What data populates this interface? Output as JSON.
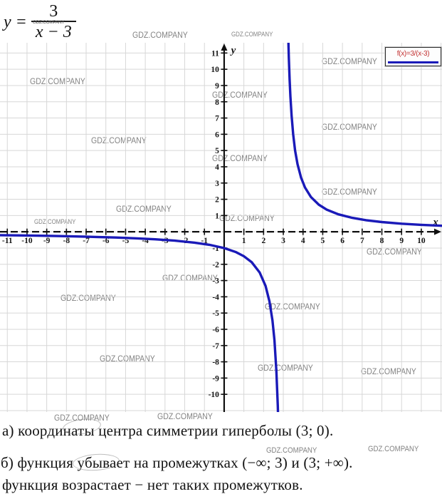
{
  "formula": {
    "lhs": "y =",
    "numerator": "3",
    "denominator": "x − 3"
  },
  "legend": {
    "label": "f(x)=3/(x-3)"
  },
  "watermark": {
    "text": "GDZ.COMPANY",
    "positions": [
      [
        186,
        42,
        12
      ],
      [
        325,
        43,
        9
      ],
      [
        452,
        79,
        12
      ],
      [
        42,
        107,
        12
      ],
      [
        298,
        126,
        12
      ],
      [
        452,
        171,
        12
      ],
      [
        128,
        190,
        12
      ],
      [
        298,
        215,
        12
      ],
      [
        452,
        262,
        12
      ],
      [
        163,
        286,
        12
      ],
      [
        308,
        299,
        12
      ],
      [
        48,
        306,
        9
      ],
      [
        515,
        346,
        12
      ],
      [
        228,
        383,
        12
      ],
      [
        85,
        411,
        12
      ],
      [
        372,
        423,
        12
      ],
      [
        140,
        496,
        12
      ],
      [
        362,
        509,
        12
      ],
      [
        507,
        514,
        12
      ],
      [
        76,
        579,
        12
      ],
      [
        221,
        577,
        12
      ],
      [
        374,
        626,
        11
      ],
      [
        517,
        624,
        11
      ]
    ]
  },
  "answers": {
    "line_a": "а) координаты центра симметрии гиперболы (3; 0).",
    "line_b": "б) функция убывает на промежутках (−∞; 3) и (3; +∞).",
    "line_c": "функция возрастает − нет таких промежутков."
  },
  "chart_data": {
    "type": "line",
    "title": "",
    "legend": [
      "f(x)=3/(x-3)"
    ],
    "xlabel": "x",
    "ylabel": "y",
    "xlim": [
      -11.37,
      11.05
    ],
    "ylim": [
      -11.09,
      11.63
    ],
    "grid": true,
    "legend_position": "top-right",
    "x_ticks": [
      -11,
      -10,
      -9,
      -8,
      -7,
      -6,
      -5,
      -4,
      -3,
      -2,
      -1,
      1,
      2,
      3,
      4,
      5,
      6,
      7,
      8,
      9,
      10
    ],
    "y_ticks": [
      -10,
      -9,
      -8,
      -7,
      -6,
      -5,
      -4,
      -3,
      -2,
      -1,
      1,
      2,
      3,
      4,
      5,
      6,
      7,
      8,
      9,
      10,
      11
    ],
    "asymptote_vertical": 3,
    "asymptote_horizontal": 0,
    "series": [
      {
        "name": "f(x)=3/(x-3)",
        "color": "#1a1ab8",
        "branches": [
          [
            [
              -11.37,
              -0.209
            ],
            [
              -10.5,
              -0.222
            ],
            [
              -9.5,
              -0.24
            ],
            [
              -8.5,
              -0.261
            ],
            [
              -7.5,
              -0.286
            ],
            [
              -6.5,
              -0.316
            ],
            [
              -5.5,
              -0.353
            ],
            [
              -4.5,
              -0.4
            ],
            [
              -3.5,
              -0.462
            ],
            [
              -2.5,
              -0.545
            ],
            [
              -1.5,
              -0.667
            ],
            [
              -0.75,
              -0.8
            ],
            [
              0,
              -1
            ],
            [
              0.6,
              -1.25
            ],
            [
              1,
              -1.5
            ],
            [
              1.4,
              -1.875
            ],
            [
              1.8,
              -2.5
            ],
            [
              2.1,
              -3.333
            ],
            [
              2.3,
              -4.286
            ],
            [
              2.45,
              -5.455
            ],
            [
              2.55,
              -6.667
            ],
            [
              2.65,
              -8.571
            ],
            [
              2.72,
              -10.714
            ],
            [
              2.75,
              -12
            ]
          ],
          [
            [
              3.25,
              12
            ],
            [
              3.28,
              10.714
            ],
            [
              3.32,
              9.375
            ],
            [
              3.36,
              8.333
            ],
            [
              3.42,
              7.143
            ],
            [
              3.5,
              6
            ],
            [
              3.6,
              5
            ],
            [
              3.72,
              4.167
            ],
            [
              3.9,
              3.333
            ],
            [
              4.1,
              2.727
            ],
            [
              4.4,
              2.143
            ],
            [
              4.8,
              1.667
            ],
            [
              5.2,
              1.364
            ],
            [
              5.8,
              1.071
            ],
            [
              6.5,
              0.857
            ],
            [
              7.2,
              0.714
            ],
            [
              8,
              0.6
            ],
            [
              9,
              0.5
            ],
            [
              10,
              0.429
            ],
            [
              11.05,
              0.373
            ]
          ]
        ]
      }
    ]
  }
}
